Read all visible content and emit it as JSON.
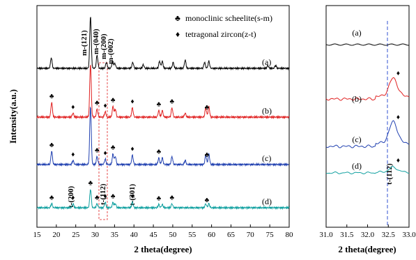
{
  "chart_data": [
    {
      "type": "line",
      "xlabel": "2 theta(degree)",
      "ylabel": "Intensity(a.u.)",
      "xlim": [
        15,
        80
      ],
      "x_ticks": [
        "15",
        "20",
        "25",
        "30",
        "35",
        "40",
        "45",
        "50",
        "55",
        "60",
        "65",
        "70",
        "75",
        "80"
      ],
      "legend": [
        {
          "symbol": "♣",
          "label": "monoclinic scheelite(s-m)"
        },
        {
          "symbol": "♦",
          "label": "tetragonal zircon(z-t)"
        }
      ],
      "series": [
        {
          "name": "(a)",
          "color": "#000000",
          "peaks": [
            [
              18.7,
              0.45
            ],
            [
              28.8,
              2.2
            ],
            [
              30.5,
              0.55
            ],
            [
              32.9,
              0.25
            ],
            [
              34.5,
              0.3
            ],
            [
              35.1,
              0.2
            ],
            [
              39.7,
              0.25
            ],
            [
              42.4,
              0.15
            ],
            [
              46.6,
              0.3
            ],
            [
              47.3,
              0.3
            ],
            [
              50.1,
              0.25
            ],
            [
              53.2,
              0.35
            ],
            [
              58.2,
              0.25
            ],
            [
              59.3,
              0.3
            ],
            [
              74.5,
              0.12
            ],
            [
              76.5,
              0.12
            ]
          ]
        },
        {
          "name": "(b)",
          "color": "#e02020",
          "peaks": [
            [
              18.8,
              0.55
            ],
            [
              24.3,
              0.15
            ],
            [
              28.8,
              2.0
            ],
            [
              30.5,
              0.3
            ],
            [
              32.6,
              0.2
            ],
            [
              34.6,
              0.4
            ],
            [
              35.2,
              0.3
            ],
            [
              39.6,
              0.35
            ],
            [
              46.4,
              0.25
            ],
            [
              47.3,
              0.25
            ],
            [
              49.8,
              0.35
            ],
            [
              53.2,
              0.15
            ],
            [
              58.5,
              0.35
            ],
            [
              59.3,
              0.4
            ]
          ]
        },
        {
          "name": "(c)",
          "color": "#2040b0",
          "peaks": [
            [
              18.8,
              0.5
            ],
            [
              24.3,
              0.15
            ],
            [
              28.8,
              2.2
            ],
            [
              30.5,
              0.3
            ],
            [
              32.6,
              0.2
            ],
            [
              34.6,
              0.4
            ],
            [
              35.2,
              0.3
            ],
            [
              39.6,
              0.35
            ],
            [
              46.4,
              0.25
            ],
            [
              47.3,
              0.25
            ],
            [
              49.8,
              0.3
            ],
            [
              53.2,
              0.15
            ],
            [
              58.5,
              0.35
            ],
            [
              59.3,
              0.4
            ]
          ]
        },
        {
          "name": "(d)",
          "color": "#10a0a0",
          "peaks": [
            [
              18.8,
              0.15
            ],
            [
              24.3,
              0.15
            ],
            [
              28.8,
              0.7
            ],
            [
              30.5,
              0.15
            ],
            [
              32.6,
              0.2
            ],
            [
              34.6,
              0.2
            ],
            [
              35.2,
              0.15
            ],
            [
              39.6,
              0.2
            ],
            [
              46.4,
              0.12
            ],
            [
              47.3,
              0.12
            ],
            [
              49.8,
              0.15
            ],
            [
              58.5,
              0.15
            ],
            [
              59.3,
              0.15
            ]
          ]
        }
      ],
      "annotations": [
        "m-(121)",
        "m-(040)",
        "m-(200)",
        "m-(002)",
        "t-(200)",
        "t-(112)",
        "t-(301)"
      ],
      "markers": {
        "(b)": {
          "club": [
            18.8,
            30.5,
            34.6,
            46.4,
            49.8,
            58.8
          ],
          "diamond": [
            24.3,
            32.6,
            39.6
          ]
        },
        "(c)": {
          "club": [
            18.8,
            30.5,
            34.6,
            46.4,
            58.8
          ],
          "diamond": [
            24.3,
            32.6,
            39.6
          ]
        },
        "(d)": {
          "club": [
            18.8,
            28.8,
            30.5,
            34.6,
            46.4,
            49.8,
            58.8
          ],
          "diamond": [
            24.3,
            32.6,
            39.6
          ]
        }
      }
    },
    {
      "type": "line",
      "xlabel": "2 theta(degree)",
      "xlim": [
        31.0,
        33.0
      ],
      "x_ticks": [
        "31.0",
        "31.5",
        "32.0",
        "32.5",
        "33.0"
      ],
      "reference_line_x": 32.6,
      "series": [
        {
          "name": "(a)",
          "color": "#000000",
          "peak": [
            32.6,
            0.0
          ]
        },
        {
          "name": "(b)",
          "color": "#e02020",
          "peak": [
            32.62,
            1.0
          ]
        },
        {
          "name": "(c)",
          "color": "#2040b0",
          "peak": [
            32.62,
            1.1
          ]
        },
        {
          "name": "(d)",
          "color": "#10a0a0",
          "peak": [
            32.62,
            0.5
          ]
        }
      ],
      "annotations": [
        "t-(112)"
      ]
    }
  ]
}
